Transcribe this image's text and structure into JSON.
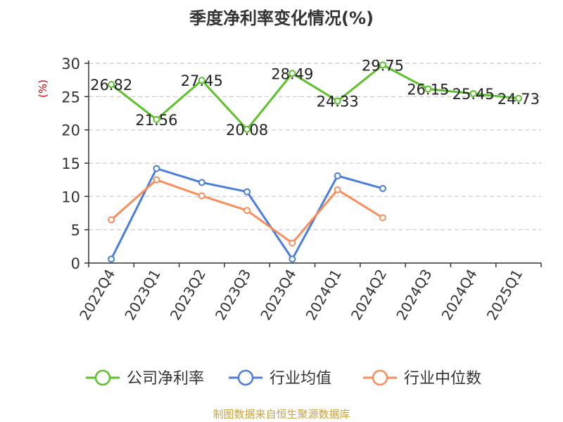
{
  "title": "季度净利率变化情况(%)",
  "source": "制图数据来自恒生聚源数据库",
  "chart_data": {
    "type": "line",
    "title": "季度净利率变化情况(%)",
    "ylabel": "(%)",
    "xlabel": "",
    "ylim": [
      0,
      30
    ],
    "yticks": [
      0,
      5,
      10,
      15,
      20,
      25,
      30
    ],
    "grid": true,
    "legend_position": "bottom",
    "categories": [
      "2022Q4",
      "2023Q1",
      "2023Q2",
      "2023Q3",
      "2023Q4",
      "2024Q1",
      "2024Q2",
      "2024Q3",
      "2024Q4",
      "2025Q1"
    ],
    "series": [
      {
        "name": "公司净利率",
        "color": "#5cc12a",
        "values": [
          26.82,
          21.56,
          27.45,
          20.08,
          28.49,
          24.33,
          29.75,
          26.15,
          25.45,
          24.73
        ],
        "labels": [
          "26.82",
          "21.56",
          "27.45",
          "20.08",
          "28.49",
          "24.33",
          "29.75",
          "26.15",
          "25.45",
          "24.73"
        ]
      },
      {
        "name": "行业均值",
        "color": "#4a7fd9",
        "values": [
          0.6,
          14.2,
          12.1,
          10.7,
          0.6,
          13.1,
          11.2,
          null,
          null,
          null
        ]
      },
      {
        "name": "行业中位数",
        "color": "#f98d5c",
        "values": [
          6.5,
          12.5,
          10.1,
          7.9,
          3.0,
          11.0,
          6.8,
          null,
          null,
          null
        ]
      }
    ]
  }
}
